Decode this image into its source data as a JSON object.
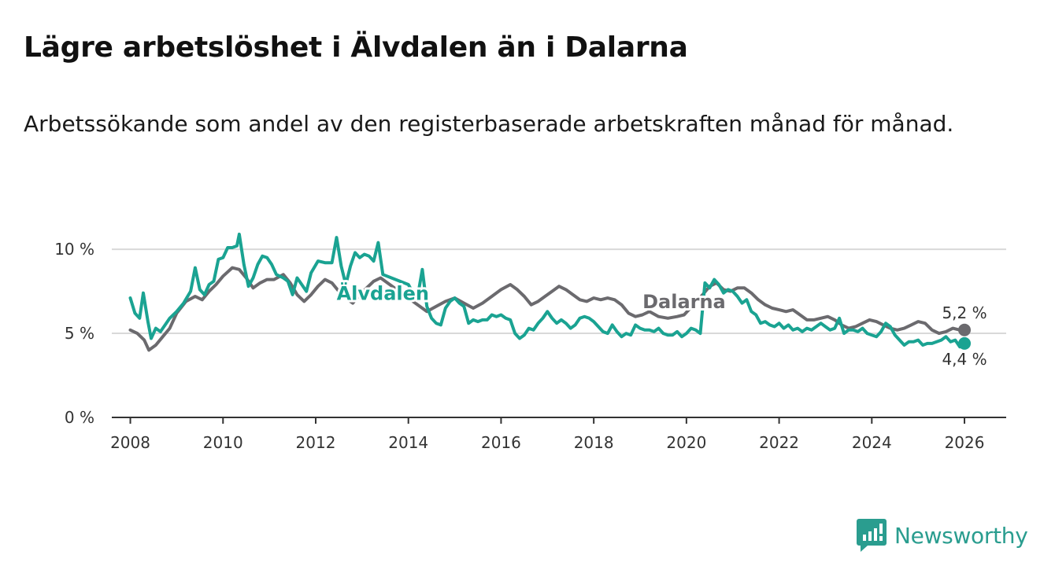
{
  "colors": {
    "alvdalen": "#1aa392",
    "dalarna": "#6b6a6e",
    "grid": "#d9d9d9",
    "axis": "#333333",
    "brand": "#2a9d8f"
  },
  "header": {
    "title": "Lägre arbetslöshet i Älvdalen än i Dalarna",
    "subtitle": "Arbetssökande som andel av den registerbaserade arbetskraften månad för månad."
  },
  "brand": {
    "name": "Newsworthy",
    "icon": "bar-chart-speech-bubble-icon"
  },
  "chart_data": {
    "type": "line",
    "title": "Lägre arbetslöshet i Älvdalen än i Dalarna",
    "subtitle": "Arbetssökande som andel av den registerbaserade arbetskraften månad för månad.",
    "xlabel": "",
    "ylabel": "",
    "xlim": [
      2007.6,
      2026.9
    ],
    "ylim": [
      0,
      10.8
    ],
    "x_ticks": [
      2008,
      2010,
      2012,
      2014,
      2016,
      2018,
      2020,
      2022,
      2024,
      2026
    ],
    "x_tick_labels": [
      "2008",
      "2010",
      "2012",
      "2014",
      "2016",
      "2018",
      "2020",
      "2022",
      "2024",
      "2026"
    ],
    "y_ticks": [
      0,
      5,
      10
    ],
    "y_tick_labels": [
      "0 %",
      "5 %",
      "10 %"
    ],
    "grid": true,
    "legend": "inline labels",
    "series": [
      {
        "name": "Dalarna",
        "label": "Dalarna",
        "end_label": "5,2 %",
        "end_value": 5.2,
        "points": [
          [
            2008.0,
            5.2
          ],
          [
            2008.15,
            5.0
          ],
          [
            2008.3,
            4.6
          ],
          [
            2008.4,
            4.0
          ],
          [
            2008.55,
            4.3
          ],
          [
            2008.7,
            4.8
          ],
          [
            2008.85,
            5.3
          ],
          [
            2009.0,
            6.2
          ],
          [
            2009.2,
            6.9
          ],
          [
            2009.4,
            7.2
          ],
          [
            2009.55,
            7.0
          ],
          [
            2009.7,
            7.5
          ],
          [
            2009.85,
            7.9
          ],
          [
            2010.0,
            8.4
          ],
          [
            2010.2,
            8.9
          ],
          [
            2010.35,
            8.8
          ],
          [
            2010.5,
            8.3
          ],
          [
            2010.65,
            7.7
          ],
          [
            2010.8,
            8.0
          ],
          [
            2010.95,
            8.2
          ],
          [
            2011.1,
            8.2
          ],
          [
            2011.3,
            8.5
          ],
          [
            2011.45,
            8.0
          ],
          [
            2011.6,
            7.3
          ],
          [
            2011.75,
            6.9
          ],
          [
            2011.9,
            7.3
          ],
          [
            2012.05,
            7.8
          ],
          [
            2012.2,
            8.2
          ],
          [
            2012.35,
            8.0
          ],
          [
            2012.5,
            7.5
          ],
          [
            2012.65,
            7.1
          ],
          [
            2012.8,
            6.8
          ],
          [
            2012.95,
            7.3
          ],
          [
            2013.1,
            7.7
          ],
          [
            2013.25,
            8.1
          ],
          [
            2013.4,
            8.3
          ],
          [
            2014.4,
            6.3
          ],
          [
            2014.6,
            6.6
          ],
          [
            2014.8,
            6.9
          ],
          [
            2015.0,
            7.1
          ],
          [
            2015.2,
            6.8
          ],
          [
            2015.4,
            6.5
          ],
          [
            2015.6,
            6.8
          ],
          [
            2015.8,
            7.2
          ],
          [
            2016.0,
            7.6
          ],
          [
            2016.2,
            7.9
          ],
          [
            2016.35,
            7.6
          ],
          [
            2016.5,
            7.2
          ],
          [
            2016.65,
            6.7
          ],
          [
            2016.8,
            6.9
          ],
          [
            2016.95,
            7.2
          ],
          [
            2017.1,
            7.5
          ],
          [
            2017.25,
            7.8
          ],
          [
            2017.4,
            7.6
          ],
          [
            2017.55,
            7.3
          ],
          [
            2017.7,
            7.0
          ],
          [
            2017.85,
            6.9
          ],
          [
            2018.0,
            7.1
          ],
          [
            2018.15,
            7.0
          ],
          [
            2018.3,
            7.1
          ],
          [
            2018.45,
            7.0
          ],
          [
            2018.6,
            6.7
          ],
          [
            2018.75,
            6.2
          ],
          [
            2018.9,
            6.0
          ],
          [
            2019.05,
            6.1
          ],
          [
            2019.2,
            6.3
          ],
          [
            2019.4,
            6.0
          ],
          [
            2019.6,
            5.9
          ],
          [
            2019.8,
            6.0
          ],
          [
            2019.95,
            6.1
          ],
          [
            2020.35,
            7.3
          ],
          [
            2020.5,
            7.8
          ],
          [
            2020.65,
            8.0
          ],
          [
            2020.8,
            7.6
          ],
          [
            2020.95,
            7.5
          ],
          [
            2021.1,
            7.7
          ],
          [
            2021.25,
            7.7
          ],
          [
            2021.4,
            7.4
          ],
          [
            2021.55,
            7.0
          ],
          [
            2021.7,
            6.7
          ],
          [
            2021.85,
            6.5
          ],
          [
            2022.0,
            6.4
          ],
          [
            2022.15,
            6.3
          ],
          [
            2022.3,
            6.4
          ],
          [
            2022.45,
            6.1
          ],
          [
            2022.6,
            5.8
          ],
          [
            2022.75,
            5.8
          ],
          [
            2022.9,
            5.9
          ],
          [
            2023.05,
            6.0
          ],
          [
            2023.2,
            5.8
          ],
          [
            2023.35,
            5.5
          ],
          [
            2023.5,
            5.3
          ],
          [
            2023.65,
            5.4
          ],
          [
            2023.8,
            5.6
          ],
          [
            2023.95,
            5.8
          ],
          [
            2024.1,
            5.7
          ],
          [
            2024.25,
            5.5
          ],
          [
            2024.4,
            5.3
          ],
          [
            2024.55,
            5.2
          ],
          [
            2024.7,
            5.3
          ],
          [
            2024.85,
            5.5
          ],
          [
            2025.0,
            5.7
          ],
          [
            2025.15,
            5.6
          ],
          [
            2025.3,
            5.2
          ],
          [
            2025.45,
            5.0
          ],
          [
            2025.6,
            5.1
          ],
          [
            2025.75,
            5.3
          ],
          [
            2025.9,
            5.2
          ],
          [
            2026.0,
            5.2
          ]
        ]
      },
      {
        "name": "Älvdalen",
        "label": "Älvdalen",
        "end_label": "4,4 %",
        "end_value": 4.4,
        "points": [
          [
            2008.0,
            7.1
          ],
          [
            2008.1,
            6.2
          ],
          [
            2008.2,
            5.9
          ],
          [
            2008.28,
            7.4
          ],
          [
            2008.38,
            5.7
          ],
          [
            2008.45,
            4.7
          ],
          [
            2008.55,
            5.3
          ],
          [
            2008.65,
            5.1
          ],
          [
            2008.75,
            5.5
          ],
          [
            2008.85,
            5.9
          ],
          [
            2009.0,
            6.3
          ],
          [
            2009.15,
            6.8
          ],
          [
            2009.3,
            7.5
          ],
          [
            2009.4,
            8.9
          ],
          [
            2009.5,
            7.6
          ],
          [
            2009.6,
            7.3
          ],
          [
            2009.7,
            7.9
          ],
          [
            2009.8,
            8.1
          ],
          [
            2009.9,
            9.4
          ],
          [
            2010.0,
            9.5
          ],
          [
            2010.1,
            10.1
          ],
          [
            2010.2,
            10.1
          ],
          [
            2010.3,
            10.2
          ],
          [
            2010.35,
            10.9
          ],
          [
            2010.45,
            9.1
          ],
          [
            2010.55,
            7.8
          ],
          [
            2010.65,
            8.3
          ],
          [
            2010.75,
            9.1
          ],
          [
            2010.85,
            9.6
          ],
          [
            2010.95,
            9.5
          ],
          [
            2011.05,
            9.1
          ],
          [
            2011.15,
            8.5
          ],
          [
            2011.3,
            8.3
          ],
          [
            2011.4,
            8.1
          ],
          [
            2011.5,
            7.3
          ],
          [
            2011.6,
            8.3
          ],
          [
            2011.7,
            7.9
          ],
          [
            2011.8,
            7.5
          ],
          [
            2011.9,
            8.6
          ],
          [
            2012.05,
            9.3
          ],
          [
            2012.2,
            9.2
          ],
          [
            2012.35,
            9.2
          ],
          [
            2012.45,
            10.7
          ],
          [
            2012.55,
            9.0
          ],
          [
            2012.65,
            7.9
          ],
          [
            2012.75,
            9.0
          ],
          [
            2012.85,
            9.8
          ],
          [
            2012.95,
            9.5
          ],
          [
            2013.05,
            9.7
          ],
          [
            2013.15,
            9.6
          ],
          [
            2013.25,
            9.3
          ],
          [
            2013.35,
            10.4
          ],
          [
            2013.45,
            8.5
          ],
          [
            2014.0,
            7.9
          ],
          [
            2014.1,
            7.4
          ],
          [
            2014.2,
            7.2
          ],
          [
            2014.3,
            8.8
          ],
          [
            2014.4,
            6.6
          ],
          [
            2014.5,
            5.9
          ],
          [
            2014.6,
            5.6
          ],
          [
            2014.7,
            5.5
          ],
          [
            2014.8,
            6.5
          ],
          [
            2014.9,
            6.9
          ],
          [
            2015.0,
            7.1
          ],
          [
            2015.1,
            6.8
          ],
          [
            2015.2,
            6.6
          ],
          [
            2015.3,
            5.6
          ],
          [
            2015.4,
            5.8
          ],
          [
            2015.5,
            5.7
          ],
          [
            2015.6,
            5.8
          ],
          [
            2015.7,
            5.8
          ],
          [
            2015.8,
            6.1
          ],
          [
            2015.9,
            6.0
          ],
          [
            2016.0,
            6.1
          ],
          [
            2016.1,
            5.9
          ],
          [
            2016.2,
            5.8
          ],
          [
            2016.3,
            5.0
          ],
          [
            2016.4,
            4.7
          ],
          [
            2016.5,
            4.9
          ],
          [
            2016.6,
            5.3
          ],
          [
            2016.7,
            5.2
          ],
          [
            2016.8,
            5.6
          ],
          [
            2016.9,
            5.9
          ],
          [
            2017.0,
            6.3
          ],
          [
            2017.1,
            5.9
          ],
          [
            2017.2,
            5.6
          ],
          [
            2017.3,
            5.8
          ],
          [
            2017.4,
            5.6
          ],
          [
            2017.5,
            5.3
          ],
          [
            2017.6,
            5.5
          ],
          [
            2017.7,
            5.9
          ],
          [
            2017.8,
            6.0
          ],
          [
            2017.9,
            5.9
          ],
          [
            2018.0,
            5.7
          ],
          [
            2018.1,
            5.4
          ],
          [
            2018.2,
            5.1
          ],
          [
            2018.3,
            5.0
          ],
          [
            2018.4,
            5.5
          ],
          [
            2018.5,
            5.1
          ],
          [
            2018.6,
            4.8
          ],
          [
            2018.7,
            5.0
          ],
          [
            2018.8,
            4.9
          ],
          [
            2018.9,
            5.5
          ],
          [
            2019.0,
            5.3
          ],
          [
            2019.1,
            5.2
          ],
          [
            2019.2,
            5.2
          ],
          [
            2019.3,
            5.1
          ],
          [
            2019.4,
            5.3
          ],
          [
            2019.5,
            5.0
          ],
          [
            2019.6,
            4.9
          ],
          [
            2019.7,
            4.9
          ],
          [
            2019.8,
            5.1
          ],
          [
            2019.9,
            4.8
          ],
          [
            2020.0,
            5.0
          ],
          [
            2020.1,
            5.3
          ],
          [
            2020.2,
            5.2
          ],
          [
            2020.3,
            5.0
          ],
          [
            2020.4,
            8.0
          ],
          [
            2020.5,
            7.7
          ],
          [
            2020.6,
            8.2
          ],
          [
            2020.7,
            7.9
          ],
          [
            2020.8,
            7.4
          ],
          [
            2020.9,
            7.6
          ],
          [
            2021.0,
            7.5
          ],
          [
            2021.1,
            7.2
          ],
          [
            2021.2,
            6.8
          ],
          [
            2021.3,
            7.0
          ],
          [
            2021.4,
            6.3
          ],
          [
            2021.5,
            6.1
          ],
          [
            2021.6,
            5.6
          ],
          [
            2021.7,
            5.7
          ],
          [
            2021.8,
            5.5
          ],
          [
            2021.9,
            5.4
          ],
          [
            2022.0,
            5.6
          ],
          [
            2022.1,
            5.3
          ],
          [
            2022.2,
            5.5
          ],
          [
            2022.3,
            5.2
          ],
          [
            2022.4,
            5.3
          ],
          [
            2022.5,
            5.1
          ],
          [
            2022.6,
            5.3
          ],
          [
            2022.7,
            5.2
          ],
          [
            2022.8,
            5.4
          ],
          [
            2022.9,
            5.6
          ],
          [
            2023.0,
            5.4
          ],
          [
            2023.1,
            5.2
          ],
          [
            2023.2,
            5.3
          ],
          [
            2023.3,
            5.9
          ],
          [
            2023.4,
            5.0
          ],
          [
            2023.5,
            5.2
          ],
          [
            2023.6,
            5.2
          ],
          [
            2023.7,
            5.1
          ],
          [
            2023.8,
            5.3
          ],
          [
            2023.9,
            5.0
          ],
          [
            2024.0,
            4.9
          ],
          [
            2024.1,
            4.8
          ],
          [
            2024.2,
            5.1
          ],
          [
            2024.3,
            5.6
          ],
          [
            2024.4,
            5.4
          ],
          [
            2024.5,
            4.9
          ],
          [
            2024.6,
            4.6
          ],
          [
            2024.7,
            4.3
          ],
          [
            2024.8,
            4.5
          ],
          [
            2024.9,
            4.5
          ],
          [
            2025.0,
            4.6
          ],
          [
            2025.1,
            4.3
          ],
          [
            2025.2,
            4.4
          ],
          [
            2025.3,
            4.4
          ],
          [
            2025.4,
            4.5
          ],
          [
            2025.5,
            4.6
          ],
          [
            2025.6,
            4.8
          ],
          [
            2025.7,
            4.5
          ],
          [
            2025.8,
            4.6
          ],
          [
            2025.9,
            4.2
          ],
          [
            2026.0,
            4.4
          ]
        ]
      }
    ]
  }
}
